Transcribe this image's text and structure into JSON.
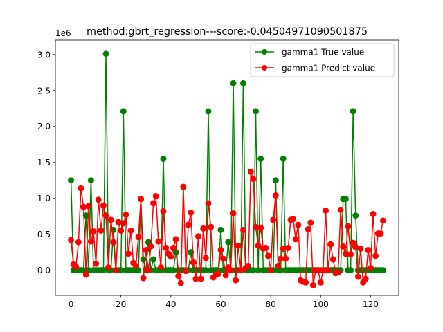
{
  "chart_data": {
    "type": "line",
    "title": "method:gbrt_regression---score:-0.04504971090501875",
    "offset_label": "1e6",
    "xlabel": "",
    "ylabel": "",
    "xlim": [
      -6.25,
      131.25
    ],
    "ylim": [
      -350000,
      3200000
    ],
    "xticks": [
      0,
      20,
      40,
      60,
      80,
      100,
      120
    ],
    "yticks": [
      0,
      500000,
      1000000,
      1500000,
      2000000,
      2500000,
      3000000
    ],
    "ytick_labels": [
      "0.0",
      "0.5",
      "1.0",
      "1.5",
      "2.0",
      "2.5",
      "3.0"
    ],
    "grid": false,
    "legend_position": "top-right",
    "series": [
      {
        "name": "gamma1 True value",
        "color": "#008000",
        "values": [
          1250000,
          0,
          0,
          0,
          0,
          0,
          760000,
          0,
          1250000,
          0,
          0,
          0,
          0,
          0,
          3010000,
          0,
          0,
          560000,
          0,
          0,
          0,
          2210000,
          0,
          0,
          0,
          0,
          0,
          0,
          990000,
          150000,
          0,
          390000,
          0,
          150000,
          0,
          0,
          0,
          1550000,
          0,
          0,
          0,
          0,
          250000,
          0,
          0,
          0,
          0,
          0,
          250000,
          0,
          0,
          0,
          0,
          0,
          0,
          2210000,
          0,
          0,
          0,
          0,
          560000,
          0,
          0,
          390000,
          0,
          2600000,
          0,
          0,
          0,
          2600000,
          0,
          0,
          0,
          0,
          2210000,
          0,
          1550000,
          0,
          0,
          0,
          0,
          0,
          1250000,
          0,
          0,
          1550000,
          0,
          0,
          0,
          0,
          0,
          0,
          0,
          0,
          0,
          0,
          0,
          0,
          0,
          0,
          0,
          0,
          0,
          0,
          0,
          0,
          0,
          0,
          0,
          990000,
          990000,
          0,
          0,
          2210000,
          760000,
          0,
          0,
          0,
          0,
          0,
          0,
          0,
          0,
          0,
          0,
          0
        ]
      },
      {
        "name": "gamma1 Predict value",
        "color": "#ff0000",
        "values": [
          420000,
          80000,
          50000,
          390000,
          1140000,
          880000,
          -60000,
          890000,
          400000,
          540000,
          90000,
          980000,
          550000,
          900000,
          760000,
          40000,
          700000,
          390000,
          0,
          670000,
          550000,
          650000,
          770000,
          230000,
          550000,
          100000,
          60000,
          460000,
          990000,
          -110000,
          280000,
          0,
          330000,
          930000,
          1030000,
          400000,
          40000,
          820000,
          310000,
          230000,
          190000,
          310000,
          430000,
          -80000,
          -180000,
          1160000,
          -10000,
          630000,
          800000,
          110000,
          -120000,
          470000,
          -120000,
          580000,
          170000,
          930000,
          600000,
          -100000,
          -60000,
          -50000,
          280000,
          160000,
          -70000,
          40000,
          0,
          790000,
          -140000,
          340000,
          0,
          560000,
          30000,
          60000,
          1370000,
          1270000,
          600000,
          340000,
          590000,
          300000,
          310000,
          200000,
          0,
          700000,
          1040000,
          60000,
          160000,
          300000,
          160000,
          310000,
          700000,
          710000,
          430000,
          630000,
          -140000,
          -160000,
          -170000,
          570000,
          660000,
          -210000,
          0,
          0,
          -170000,
          0,
          830000,
          0,
          360000,
          150000,
          -40000,
          -30000,
          840000,
          330000,
          230000,
          610000,
          220000,
          380000,
          320000,
          -90000,
          300000,
          -170000,
          -120000,
          280000,
          30000,
          780000,
          200000,
          510000,
          510000,
          690000
        ]
      }
    ]
  }
}
